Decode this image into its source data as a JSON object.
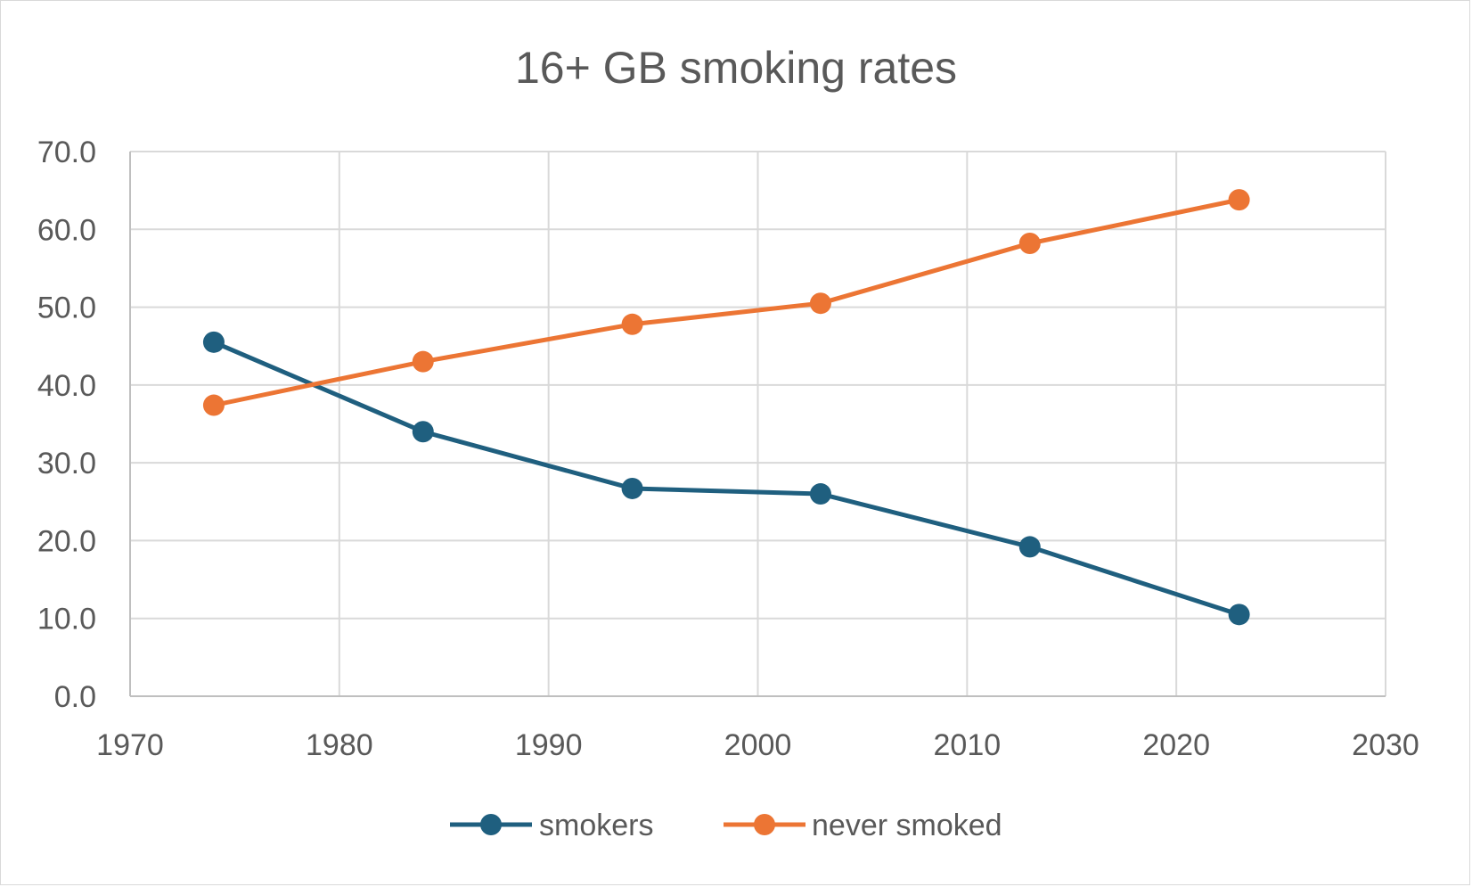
{
  "chart_data": {
    "type": "scatter",
    "mode": "lines+markers",
    "title": "16+ GB smoking rates",
    "xlabel": "",
    "ylabel": "",
    "xlim": [
      1970,
      2030
    ],
    "ylim": [
      0,
      70
    ],
    "x_ticks": [
      "1970",
      "1980",
      "1990",
      "2000",
      "2010",
      "2020",
      "2030"
    ],
    "y_ticks": [
      "0.0",
      "10.0",
      "20.0",
      "30.0",
      "40.0",
      "50.0",
      "60.0",
      "70.0"
    ],
    "grid": true,
    "legend_position": "bottom",
    "series": [
      {
        "name": "smokers",
        "color": "#1f5f7f",
        "points": [
          {
            "x": 1974,
            "y": 45.5
          },
          {
            "x": 1984,
            "y": 34.0
          },
          {
            "x": 1994,
            "y": 26.7
          },
          {
            "x": 2003,
            "y": 26.0
          },
          {
            "x": 2013,
            "y": 19.2
          },
          {
            "x": 2023,
            "y": 10.5
          }
        ]
      },
      {
        "name": "never smoked",
        "color": "#ec7534",
        "points": [
          {
            "x": 1974,
            "y": 37.4
          },
          {
            "x": 1984,
            "y": 43.0
          },
          {
            "x": 1994,
            "y": 47.8
          },
          {
            "x": 2003,
            "y": 50.5
          },
          {
            "x": 2013,
            "y": 58.2
          },
          {
            "x": 2023,
            "y": 63.8
          }
        ]
      }
    ]
  }
}
